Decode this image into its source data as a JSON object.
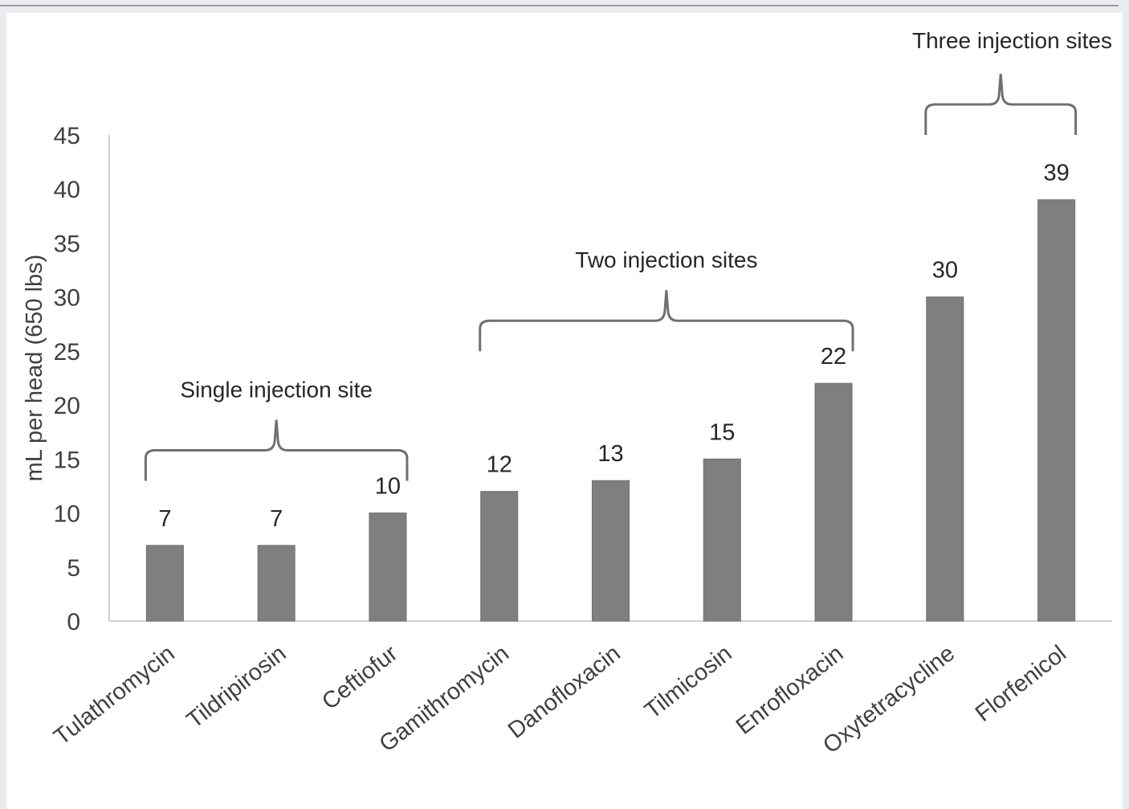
{
  "chart_data": {
    "type": "bar",
    "title": "",
    "xlabel": "",
    "ylabel": "mL per head (650 lbs)",
    "ylim": [
      0,
      45
    ],
    "yticks": [
      0,
      5,
      10,
      15,
      20,
      25,
      30,
      35,
      40,
      45
    ],
    "grid": false,
    "bar_color": "#7f7f7f",
    "categories": [
      "Tulathromycin",
      "Tildripirosin",
      "Ceftiofur",
      "Gamithromycin",
      "Danofloxacin",
      "Tilmicosin",
      "Enrofloxacin",
      "Oxytetracycline",
      "Florfenicol"
    ],
    "values": [
      7,
      7,
      10,
      12,
      13,
      15,
      22,
      30,
      39
    ],
    "annotations": [
      {
        "label": "Single injection site",
        "from": 0,
        "to": 2
      },
      {
        "label": "Two injection sites",
        "from": 3,
        "to": 6
      },
      {
        "label": "Three injection sites",
        "from": 7,
        "to": 8
      }
    ]
  }
}
